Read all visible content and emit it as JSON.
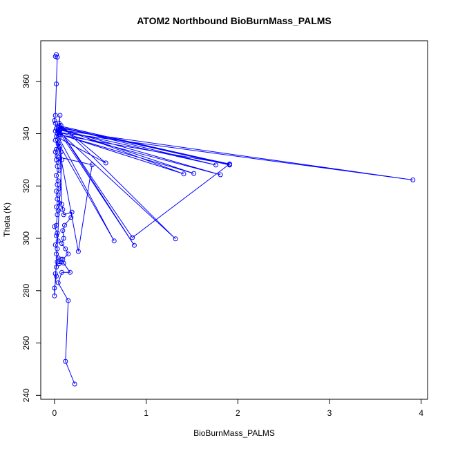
{
  "chart_data": {
    "type": "line",
    "title": "ATOM2 Northbound BioBurnMass_PALMS",
    "xlabel": "BioBurnMass_PALMS",
    "ylabel": "Theta (K)",
    "xlim": [
      -0.15,
      4.07
    ],
    "ylim": [
      238.5,
      375.5
    ],
    "x_ticks": [
      0,
      1,
      2,
      3,
      4
    ],
    "y_ticks": [
      240,
      260,
      280,
      300,
      320,
      340,
      360
    ],
    "grid": false,
    "legend": "none",
    "series_color": "#0000ff",
    "points": [
      [
        0.02,
        370.2
      ],
      [
        0.01,
        369.5
      ],
      [
        0.03,
        369.2
      ],
      [
        0.02,
        359
      ],
      [
        0.01,
        347
      ],
      [
        0.0,
        345
      ],
      [
        0.01,
        344
      ],
      [
        0.02,
        342
      ],
      [
        0.01,
        341
      ],
      [
        0.03,
        340
      ],
      [
        0.02,
        339
      ],
      [
        0.01,
        337.5
      ],
      [
        0.04,
        336
      ],
      [
        0.02,
        334
      ],
      [
        0.01,
        333
      ],
      [
        0.03,
        331.5
      ],
      [
        0.02,
        330
      ],
      [
        0.06,
        347
      ],
      [
        0.05,
        344
      ],
      [
        0.07,
        342
      ],
      [
        0.04,
        341
      ],
      [
        0.06,
        339.5
      ],
      [
        1.91,
        328.3
      ],
      [
        0.05,
        343
      ],
      [
        1.91,
        328.0
      ],
      [
        0.06,
        342.5
      ],
      [
        1.76,
        328.0
      ],
      [
        0.04,
        341.5
      ],
      [
        3.91,
        322.3
      ],
      [
        0.05,
        340.5
      ],
      [
        1.81,
        324.3
      ],
      [
        0.06,
        341.8
      ],
      [
        1.52,
        324.8
      ],
      [
        0.05,
        339.8
      ],
      [
        1.41,
        324.6
      ],
      [
        0.04,
        342.4
      ],
      [
        1.91,
        328.4
      ],
      [
        0.85,
        300.3
      ],
      [
        0.06,
        341.2
      ],
      [
        0.87,
        297.3
      ],
      [
        0.05,
        340.8
      ],
      [
        1.32,
        299.8
      ],
      [
        0.07,
        343.2
      ],
      [
        0.56,
        328.8
      ],
      [
        0.05,
        338.3
      ],
      [
        0.65,
        299.0
      ],
      [
        0.04,
        336.5
      ],
      [
        0.26,
        295.0
      ],
      [
        0.41,
        328.1
      ],
      [
        0.05,
        331
      ],
      [
        0.04,
        329
      ],
      [
        0.03,
        327.5
      ],
      [
        0.05,
        326
      ],
      [
        0.02,
        324
      ],
      [
        0.04,
        322
      ],
      [
        0.03,
        320.5
      ],
      [
        0.05,
        319
      ],
      [
        0.02,
        318
      ],
      [
        0.04,
        316.5
      ],
      [
        0.03,
        315
      ],
      [
        0.05,
        313.5
      ],
      [
        0.02,
        312
      ],
      [
        0.04,
        310.5
      ],
      [
        0.03,
        309
      ],
      [
        0.02,
        305
      ],
      [
        0.0,
        304.5
      ],
      [
        0.03,
        302
      ],
      [
        0.02,
        301
      ],
      [
        0.04,
        299
      ],
      [
        0.01,
        297.5
      ],
      [
        0.03,
        296
      ],
      [
        0.02,
        294
      ],
      [
        0.04,
        292.5
      ],
      [
        0.03,
        291
      ],
      [
        0.02,
        289
      ],
      [
        0.01,
        286.5
      ],
      [
        0.02,
        285.5
      ],
      [
        0.0,
        281
      ],
      [
        0.0,
        278
      ],
      [
        0.08,
        330
      ],
      [
        0.07,
        333
      ],
      [
        0.06,
        335
      ],
      [
        0.08,
        313
      ],
      [
        0.09,
        311
      ],
      [
        0.1,
        309
      ],
      [
        0.19,
        310
      ],
      [
        0.18,
        308
      ],
      [
        0.11,
        305
      ],
      [
        0.09,
        303
      ],
      [
        0.1,
        300
      ],
      [
        0.08,
        298
      ],
      [
        0.12,
        296
      ],
      [
        0.15,
        294
      ],
      [
        0.09,
        292
      ],
      [
        0.1,
        290.5
      ],
      [
        0.05,
        290.3
      ],
      [
        0.07,
        292
      ],
      [
        0.17,
        287
      ],
      [
        0.08,
        287
      ],
      [
        0.04,
        283
      ],
      [
        0.15,
        276.2
      ],
      [
        0.12,
        253
      ],
      [
        0.22,
        244.3
      ]
    ]
  }
}
